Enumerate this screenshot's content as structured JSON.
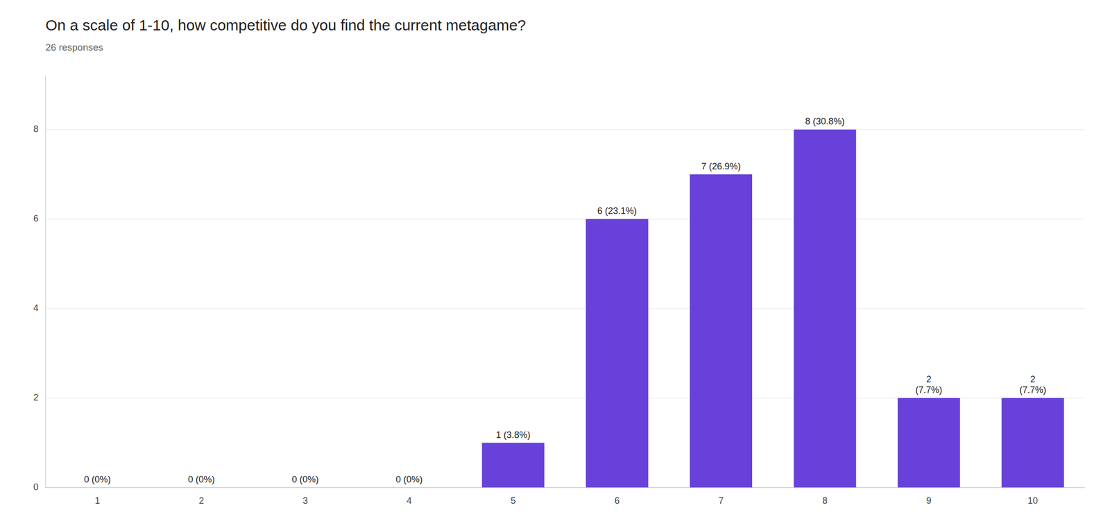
{
  "chart_data": {
    "type": "bar",
    "title": "On a scale of 1-10, how competitive do you find the current metagame?",
    "subtitle": "26 responses",
    "categories": [
      1,
      2,
      3,
      4,
      5,
      6,
      7,
      8,
      9,
      10
    ],
    "values": [
      0,
      0,
      0,
      0,
      1,
      6,
      7,
      8,
      2,
      2
    ],
    "value_labels": [
      "0 (0%)",
      "0 (0%)",
      "0 (0%)",
      "0 (0%)",
      "1 (3.8%)",
      "6 (23.1%)",
      "7 (26.9%)",
      "8 (30.8%)",
      "2\n(7.7%)",
      "2\n(7.7%)"
    ],
    "data_labels": true,
    "color": "#6741d9",
    "ylim": [
      0,
      9.2
    ],
    "yticks": [
      0,
      2,
      4,
      6,
      8
    ],
    "grid": true
  }
}
